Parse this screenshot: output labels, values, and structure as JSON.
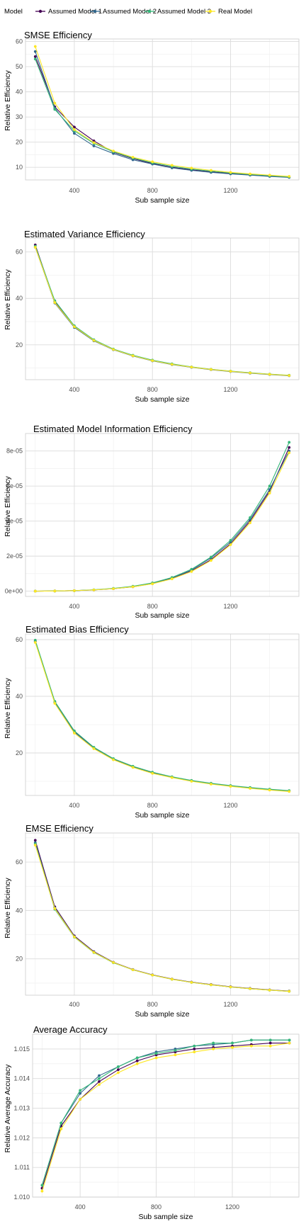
{
  "legend": {
    "title": "Model",
    "entries": [
      {
        "name": "Assumed Model 1",
        "color": "#440154"
      },
      {
        "name": "Assumed Model 2",
        "color": "#31688E"
      },
      {
        "name": "Assumed Model 3",
        "color": "#35B779"
      },
      {
        "name": "Real Model",
        "color": "#FDE725"
      }
    ],
    "placement": "top"
  },
  "chart_data": [
    {
      "type": "line",
      "title": "SMSE Efficiency",
      "xlabel": "Sub sample size",
      "ylabel": "Relative Efficiency",
      "x": [
        200,
        300,
        400,
        500,
        600,
        700,
        800,
        900,
        1000,
        1100,
        1200,
        1300,
        1400,
        1500
      ],
      "xlim": [
        150,
        1550
      ],
      "ylim": [
        5,
        61
      ],
      "xticks": [
        400,
        800,
        1200
      ],
      "yticks": [
        10,
        20,
        30,
        40,
        50,
        60
      ],
      "ytick_labels": [
        "10",
        "20",
        "30",
        "40",
        "50",
        "60"
      ],
      "grid": true,
      "series": [
        {
          "name": "Assumed Model 1",
          "values": [
            54.0,
            34.0,
            26.0,
            20.5,
            16.0,
            13.5,
            11.5,
            10.0,
            9.0,
            8.2,
            7.6,
            7.0,
            6.5,
            6.1
          ]
        },
        {
          "name": "Assumed Model 2",
          "values": [
            56.0,
            33.5,
            23.5,
            18.5,
            15.5,
            13.0,
            11.3,
            9.8,
            8.8,
            8.0,
            7.4,
            6.9,
            6.4,
            6.0
          ]
        },
        {
          "name": "Assumed Model 3",
          "values": [
            53.0,
            33.0,
            24.5,
            19.5,
            16.2,
            13.7,
            11.8,
            10.4,
            9.3,
            8.5,
            7.8,
            7.2,
            6.7,
            6.2
          ]
        },
        {
          "name": "Real Model",
          "values": [
            58.0,
            35.5,
            25.0,
            19.8,
            16.5,
            14.0,
            12.2,
            10.8,
            9.7,
            8.8,
            8.0,
            7.4,
            6.9,
            6.4
          ]
        }
      ]
    },
    {
      "type": "line",
      "title": "Estimated Variance Efficiency",
      "xlabel": "Sub sample size",
      "ylabel": "Relative Efficiency",
      "x": [
        200,
        300,
        400,
        500,
        600,
        700,
        800,
        900,
        1000,
        1100,
        1200,
        1300,
        1400,
        1500
      ],
      "xlim": [
        150,
        1550
      ],
      "ylim": [
        5,
        66
      ],
      "xticks": [
        400,
        800,
        1200
      ],
      "yticks": [
        20,
        40,
        60
      ],
      "ytick_labels": [
        "20",
        "40",
        "60"
      ],
      "grid": true,
      "series": [
        {
          "name": "Assumed Model 1",
          "values": [
            63.0,
            38.5,
            28.0,
            22.0,
            18.0,
            15.3,
            13.2,
            11.6,
            10.4,
            9.4,
            8.6,
            7.9,
            7.3,
            6.8
          ]
        },
        {
          "name": "Assumed Model 2",
          "values": [
            62.0,
            38.0,
            27.5,
            21.7,
            17.9,
            15.2,
            13.1,
            11.5,
            10.3,
            9.3,
            8.5,
            7.8,
            7.2,
            6.7
          ]
        },
        {
          "name": "Assumed Model 3",
          "values": [
            62.5,
            39.0,
            28.2,
            22.2,
            18.2,
            15.5,
            13.4,
            11.8,
            10.5,
            9.5,
            8.7,
            8.0,
            7.4,
            6.9
          ]
        },
        {
          "name": "Real Model",
          "values": [
            62.0,
            38.2,
            27.8,
            21.9,
            18.0,
            15.3,
            13.2,
            11.6,
            10.4,
            9.4,
            8.6,
            7.9,
            7.3,
            6.8
          ]
        }
      ]
    },
    {
      "type": "line",
      "title": "Estimated Model Information Efficiency",
      "xlabel": "Sub sample size",
      "ylabel": "Relative Efficiency",
      "x": [
        200,
        300,
        400,
        500,
        600,
        700,
        800,
        900,
        1000,
        1100,
        1200,
        1300,
        1400,
        1500
      ],
      "xlim": [
        150,
        1550
      ],
      "ylim": [
        -3e-06,
        9e-05
      ],
      "xticks": [
        400,
        800,
        1200
      ],
      "yticks": [
        0,
        2e-05,
        4e-05,
        6e-05,
        8e-05
      ],
      "ytick_labels": [
        "0e+00",
        "2e-05",
        "4e-05",
        "6e-05",
        "8e-05"
      ],
      "grid": true,
      "series": [
        {
          "name": "Assumed Model 1",
          "values": [
            0.0,
            1e-07,
            3e-07,
            7e-07,
            1.4e-06,
            2.5e-06,
            4.3e-06,
            7.2e-06,
            1.15e-05,
            1.8e-05,
            2.7e-05,
            4e-05,
            5.7e-05,
            8.2e-05
          ]
        },
        {
          "name": "Assumed Model 2",
          "values": [
            0.0,
            1e-07,
            3e-07,
            7e-07,
            1.5e-06,
            2.6e-06,
            4.5e-06,
            7.5e-06,
            1.2e-05,
            1.9e-05,
            2.8e-05,
            4.1e-05,
            5.8e-05,
            8e-05
          ]
        },
        {
          "name": "Assumed Model 3",
          "values": [
            0.0,
            1e-07,
            3e-07,
            8e-07,
            1.6e-06,
            2.8e-06,
            4.7e-06,
            7.8e-06,
            1.25e-05,
            1.95e-05,
            2.9e-05,
            4.2e-05,
            6e-05,
            8.5e-05
          ]
        },
        {
          "name": "Real Model",
          "values": [
            0.0,
            1e-07,
            3e-07,
            7e-07,
            1.4e-06,
            2.5e-06,
            4.2e-06,
            7e-06,
            1.12e-05,
            1.75e-05,
            2.65e-05,
            3.9e-05,
            5.6e-05,
            7.9e-05
          ]
        }
      ]
    },
    {
      "type": "line",
      "title": "Estimated Bias Efficiency",
      "xlabel": "Sub sample size",
      "ylabel": "Relative Efficiency",
      "x": [
        200,
        300,
        400,
        500,
        600,
        700,
        800,
        900,
        1000,
        1100,
        1200,
        1300,
        1400,
        1500
      ],
      "xlim": [
        150,
        1550
      ],
      "ylim": [
        5,
        62
      ],
      "xticks": [
        400,
        800,
        1200
      ],
      "yticks": [
        20,
        40,
        60
      ],
      "ytick_labels": [
        "20",
        "40",
        "60"
      ],
      "grid": true,
      "series": [
        {
          "name": "Assumed Model 1",
          "values": [
            59.5,
            38.0,
            27.5,
            21.8,
            17.8,
            15.1,
            13.0,
            11.5,
            10.2,
            9.2,
            8.4,
            7.7,
            7.1,
            6.6
          ]
        },
        {
          "name": "Assumed Model 2",
          "values": [
            59.3,
            37.8,
            27.4,
            21.7,
            17.7,
            15.0,
            12.9,
            11.4,
            10.1,
            9.1,
            8.3,
            7.6,
            7.0,
            6.5
          ]
        },
        {
          "name": "Assumed Model 3",
          "values": [
            59.8,
            38.2,
            27.8,
            22.0,
            18.0,
            15.3,
            13.2,
            11.6,
            10.3,
            9.3,
            8.5,
            7.8,
            7.2,
            6.7
          ]
        },
        {
          "name": "Real Model",
          "values": [
            59.0,
            37.5,
            27.0,
            21.5,
            17.6,
            14.9,
            12.8,
            11.3,
            10.0,
            9.0,
            8.2,
            7.5,
            6.9,
            6.4
          ]
        }
      ]
    },
    {
      "type": "line",
      "title": "EMSE Efficiency",
      "xlabel": "Sub sample size",
      "ylabel": "Relative Efficiency",
      "x": [
        200,
        300,
        400,
        500,
        600,
        700,
        800,
        900,
        1000,
        1100,
        1200,
        1300,
        1400,
        1500
      ],
      "xlim": [
        150,
        1550
      ],
      "ylim": [
        5,
        72
      ],
      "xticks": [
        400,
        800,
        1200
      ],
      "yticks": [
        20,
        40,
        60
      ],
      "ytick_labels": [
        "20",
        "40",
        "60"
      ],
      "grid": true,
      "series": [
        {
          "name": "Assumed Model 1",
          "values": [
            69.0,
            41.5,
            29.5,
            23.0,
            18.6,
            15.6,
            13.4,
            11.7,
            10.4,
            9.4,
            8.5,
            7.8,
            7.2,
            6.7
          ]
        },
        {
          "name": "Assumed Model 2",
          "values": [
            68.0,
            41.0,
            29.2,
            22.8,
            18.5,
            15.5,
            13.3,
            11.6,
            10.3,
            9.3,
            8.4,
            7.7,
            7.1,
            6.6
          ]
        },
        {
          "name": "Assumed Model 3",
          "values": [
            67.5,
            40.5,
            29.0,
            22.6,
            18.4,
            15.5,
            13.3,
            11.6,
            10.3,
            9.3,
            8.4,
            7.7,
            7.1,
            6.6
          ]
        },
        {
          "name": "Real Model",
          "values": [
            67.0,
            40.8,
            29.1,
            22.7,
            18.5,
            15.5,
            13.3,
            11.6,
            10.3,
            9.3,
            8.4,
            7.7,
            7.1,
            6.6
          ]
        }
      ]
    },
    {
      "type": "line",
      "title": "Average Accuracy",
      "xlabel": "Sub sample size",
      "ylabel": "Relative Average Accuracy",
      "x": [
        200,
        300,
        400,
        500,
        600,
        700,
        800,
        900,
        1000,
        1100,
        1200,
        1300,
        1400,
        1500
      ],
      "xlim": [
        150,
        1550
      ],
      "ylim": [
        1.01,
        1.0155
      ],
      "xticks": [
        400,
        800,
        1200
      ],
      "yticks": [
        1.01,
        1.011,
        1.012,
        1.013,
        1.014,
        1.015
      ],
      "ytick_labels": [
        "1.010",
        "1.011",
        "1.012",
        "1.013",
        "1.014",
        "1.015"
      ],
      "grid": true,
      "series": [
        {
          "name": "Assumed Model 1",
          "values": [
            1.0103,
            1.0124,
            1.0133,
            1.0139,
            1.0143,
            1.0146,
            1.0148,
            1.0149,
            1.015,
            1.01505,
            1.0151,
            1.01515,
            1.0152,
            1.0152
          ]
        },
        {
          "name": "Assumed Model 2",
          "values": [
            1.0104,
            1.0125,
            1.0135,
            1.0141,
            1.0144,
            1.0147,
            1.0149,
            1.015,
            1.0151,
            1.01515,
            1.0152,
            1.0153,
            1.0153,
            1.0153
          ]
        },
        {
          "name": "Assumed Model 3",
          "values": [
            1.0104,
            1.0125,
            1.0136,
            1.014,
            1.0144,
            1.0147,
            1.01485,
            1.01495,
            1.0151,
            1.0152,
            1.0152,
            1.0153,
            1.0153,
            1.0153
          ]
        },
        {
          "name": "Real Model",
          "values": [
            1.0102,
            1.0123,
            1.0133,
            1.0138,
            1.0142,
            1.0145,
            1.0147,
            1.0148,
            1.0149,
            1.015,
            1.01505,
            1.0151,
            1.0151,
            1.0152
          ]
        }
      ]
    }
  ]
}
